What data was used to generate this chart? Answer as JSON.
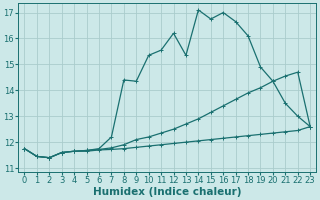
{
  "xlabel": "Humidex (Indice chaleur)",
  "ylabel": "",
  "xlim": [
    -0.5,
    23.5
  ],
  "ylim": [
    10.85,
    17.35
  ],
  "bg_color": "#cce8e8",
  "grid_color": "#aacccc",
  "line_color": "#1a7070",
  "line1_x": [
    0,
    1,
    2,
    3,
    4,
    5,
    6,
    7,
    8,
    9,
    10,
    11,
    12,
    13,
    14,
    15,
    16,
    17,
    18,
    19,
    20,
    21,
    22,
    23
  ],
  "line1_y": [
    11.75,
    11.45,
    11.4,
    11.6,
    11.65,
    11.65,
    11.7,
    11.72,
    11.75,
    11.8,
    11.85,
    11.9,
    11.95,
    12.0,
    12.05,
    12.1,
    12.15,
    12.2,
    12.25,
    12.3,
    12.35,
    12.4,
    12.45,
    12.6
  ],
  "line2_x": [
    0,
    1,
    2,
    3,
    4,
    5,
    6,
    7,
    8,
    9,
    10,
    11,
    12,
    13,
    14,
    15,
    16,
    17,
    18,
    19,
    20,
    21,
    22,
    23
  ],
  "line2_y": [
    11.75,
    11.45,
    11.4,
    11.6,
    11.65,
    11.68,
    11.72,
    11.78,
    11.9,
    12.1,
    12.2,
    12.35,
    12.5,
    12.7,
    12.9,
    13.15,
    13.4,
    13.65,
    13.9,
    14.1,
    14.35,
    14.55,
    14.7,
    12.6
  ],
  "line3_x": [
    0,
    1,
    2,
    3,
    4,
    5,
    6,
    7,
    8,
    9,
    10,
    11,
    12,
    13,
    14,
    15,
    16,
    17,
    18,
    19,
    20,
    21,
    22,
    23
  ],
  "line3_y": [
    11.75,
    11.45,
    11.4,
    11.6,
    11.65,
    11.68,
    11.75,
    12.2,
    14.4,
    14.35,
    15.35,
    15.55,
    16.2,
    15.35,
    17.1,
    16.75,
    17.0,
    16.65,
    16.1,
    14.9,
    14.35,
    13.5,
    13.0,
    12.6
  ],
  "xticks": [
    0,
    1,
    2,
    3,
    4,
    5,
    6,
    7,
    8,
    9,
    10,
    11,
    12,
    13,
    14,
    15,
    16,
    17,
    18,
    19,
    20,
    21,
    22,
    23
  ],
  "yticks": [
    11,
    12,
    13,
    14,
    15,
    16,
    17
  ],
  "tick_fontsize": 6,
  "xlabel_fontsize": 7.5,
  "marker_size": 2.5,
  "line_width": 0.9
}
